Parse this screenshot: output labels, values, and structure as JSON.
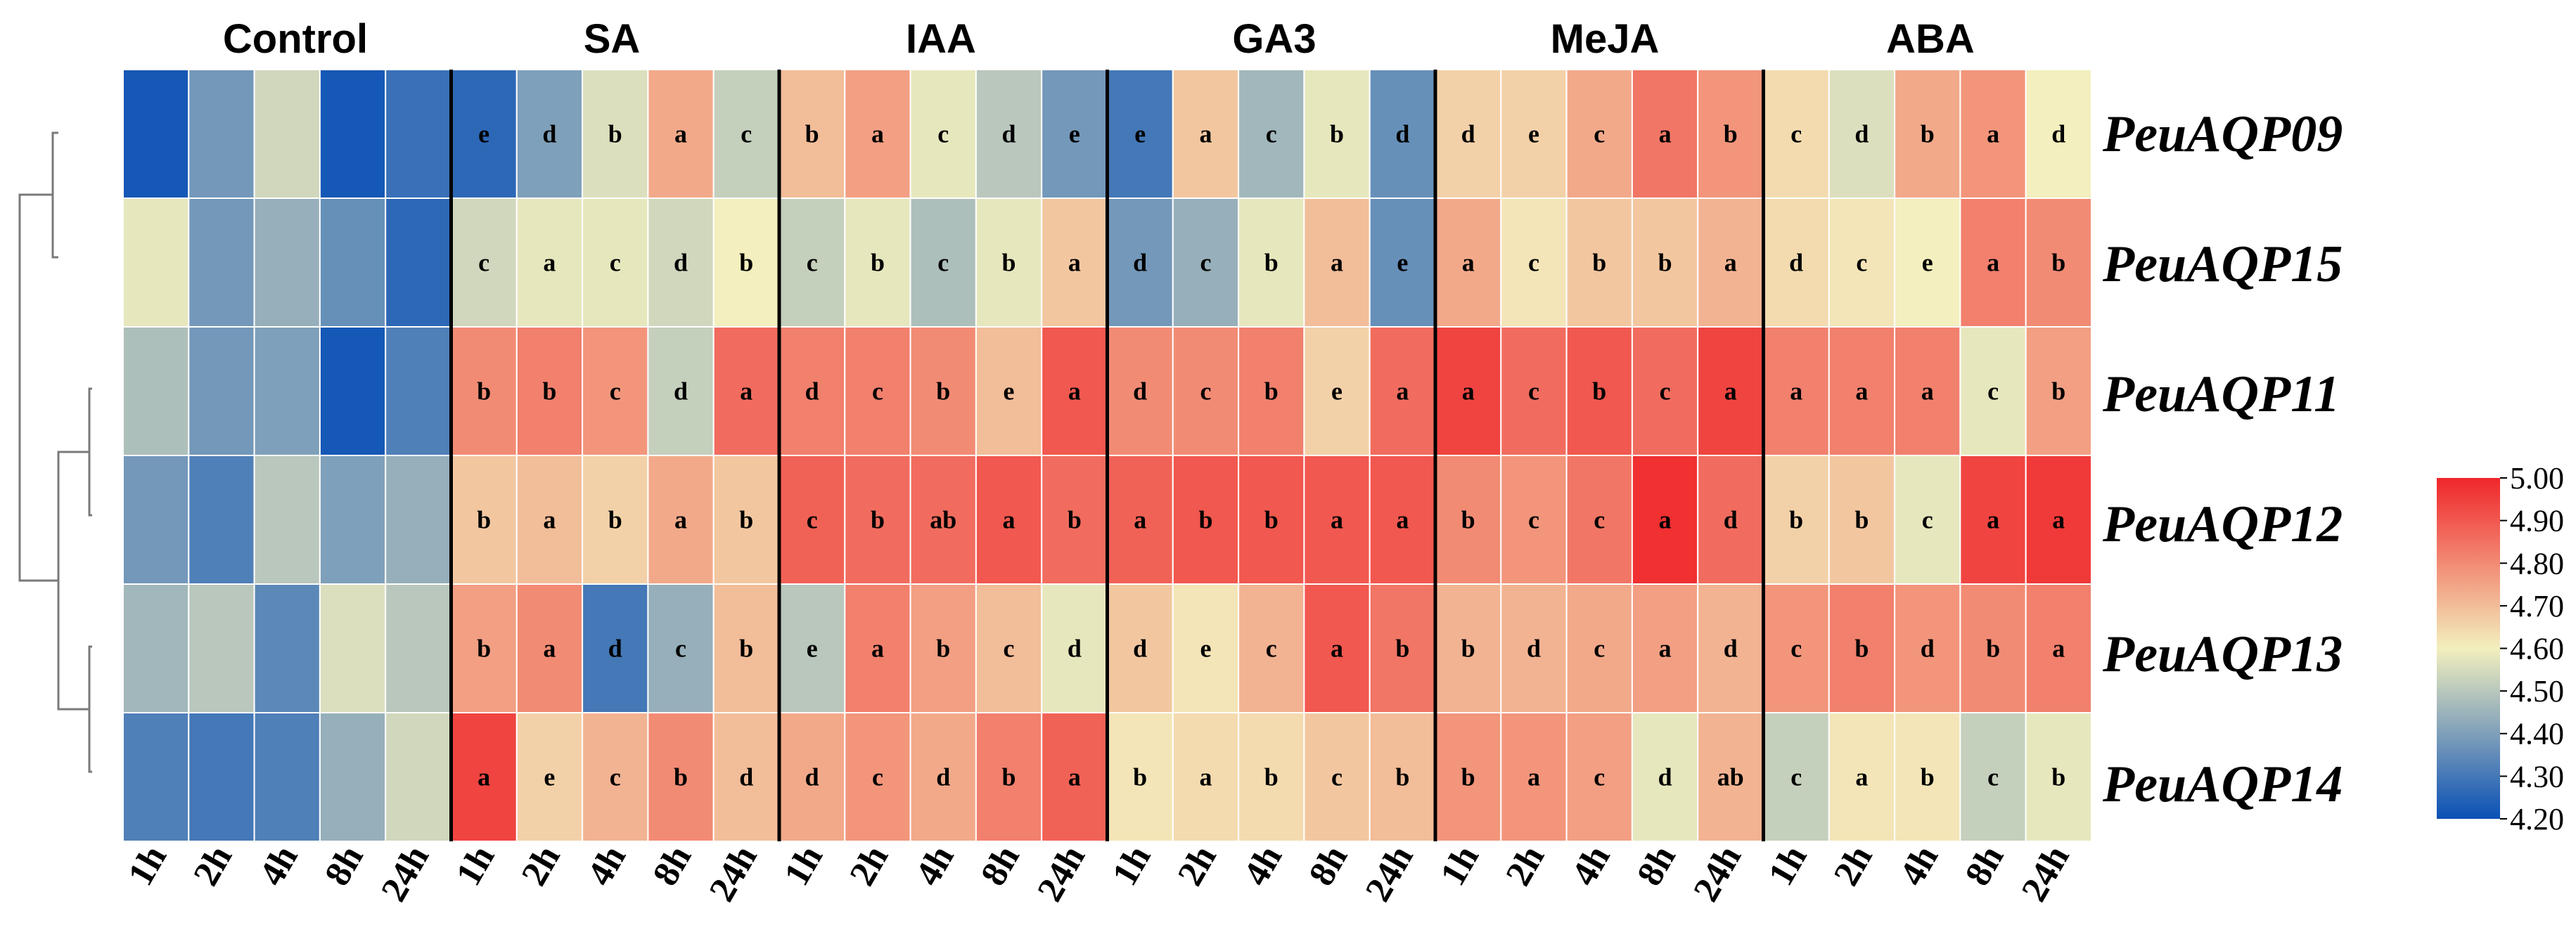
{
  "chart_data": {
    "type": "heatmap",
    "groups": [
      "Control",
      "SA",
      "IAA",
      "GA3",
      "MeJA",
      "ABA"
    ],
    "timepoints": [
      "1h",
      "2h",
      "4h",
      "8h",
      "24h"
    ],
    "genes": [
      "PeuAQP09",
      "PeuAQP15",
      "PeuAQP11",
      "PeuAQP12",
      "PeuAQP13",
      "PeuAQP14"
    ],
    "values": [
      [
        4.22,
        4.38,
        4.54,
        4.22,
        4.28,
        4.26,
        4.4,
        4.56,
        4.74,
        4.52,
        4.7,
        4.76,
        4.58,
        4.5,
        4.38,
        4.3,
        4.68,
        4.46,
        4.58,
        4.36,
        4.66,
        4.66,
        4.74,
        4.84,
        4.78,
        4.64,
        4.56,
        4.74,
        4.78,
        4.6
      ],
      [
        4.58,
        4.38,
        4.44,
        4.36,
        4.26,
        4.54,
        4.58,
        4.58,
        4.54,
        4.6,
        4.52,
        4.58,
        4.48,
        4.58,
        4.68,
        4.38,
        4.44,
        4.58,
        4.7,
        4.36,
        4.74,
        4.62,
        4.68,
        4.68,
        4.72,
        4.64,
        4.62,
        4.6,
        4.82,
        4.8
      ],
      [
        4.48,
        4.38,
        4.4,
        4.22,
        4.32,
        4.8,
        4.82,
        4.78,
        4.52,
        4.86,
        4.82,
        4.82,
        4.8,
        4.7,
        4.9,
        4.8,
        4.8,
        4.82,
        4.66,
        4.86,
        4.94,
        4.86,
        4.9,
        4.86,
        4.94,
        4.82,
        4.82,
        4.82,
        4.58,
        4.76
      ],
      [
        4.38,
        4.32,
        4.5,
        4.4,
        4.44,
        4.68,
        4.7,
        4.66,
        4.74,
        4.68,
        4.88,
        4.86,
        4.86,
        4.9,
        4.86,
        4.88,
        4.9,
        4.9,
        4.9,
        4.9,
        4.8,
        4.78,
        4.84,
        4.98,
        4.86,
        4.66,
        4.68,
        4.58,
        4.94,
        4.96
      ],
      [
        4.46,
        4.5,
        4.34,
        4.56,
        4.5,
        4.76,
        4.8,
        4.3,
        4.44,
        4.7,
        4.5,
        4.82,
        4.76,
        4.7,
        4.58,
        4.68,
        4.62,
        4.72,
        4.9,
        4.84,
        4.72,
        4.72,
        4.74,
        4.76,
        4.72,
        4.78,
        4.82,
        4.78,
        4.8,
        4.82
      ],
      [
        4.32,
        4.3,
        4.32,
        4.44,
        4.54,
        4.94,
        4.66,
        4.72,
        4.8,
        4.7,
        4.74,
        4.78,
        4.74,
        4.82,
        4.88,
        4.62,
        4.64,
        4.64,
        4.68,
        4.7,
        4.78,
        4.78,
        4.76,
        4.58,
        4.72,
        4.52,
        4.62,
        4.62,
        4.52,
        4.58
      ]
    ],
    "letters": [
      [
        "",
        "",
        "",
        "",
        "",
        "e",
        "d",
        "b",
        "a",
        "c",
        "b",
        "a",
        "c",
        "d",
        "e",
        "e",
        "a",
        "c",
        "b",
        "d",
        "d",
        "e",
        "c",
        "a",
        "b",
        "c",
        "d",
        "b",
        "a",
        "d"
      ],
      [
        "",
        "",
        "",
        "",
        "",
        "c",
        "a",
        "c",
        "d",
        "b",
        "c",
        "b",
        "c",
        "b",
        "a",
        "d",
        "c",
        "b",
        "a",
        "e",
        "a",
        "c",
        "b",
        "b",
        "a",
        "d",
        "c",
        "e",
        "a",
        "b"
      ],
      [
        "",
        "",
        "",
        "",
        "",
        "b",
        "b",
        "c",
        "d",
        "a",
        "d",
        "c",
        "b",
        "e",
        "a",
        "d",
        "c",
        "b",
        "e",
        "a",
        "a",
        "c",
        "b",
        "c",
        "a",
        "a",
        "a",
        "a",
        "c",
        "b"
      ],
      [
        "",
        "",
        "",
        "",
        "",
        "b",
        "a",
        "b",
        "a",
        "b",
        "c",
        "b",
        "ab",
        "a",
        "b",
        "a",
        "b",
        "b",
        "a",
        "a",
        "b",
        "c",
        "c",
        "a",
        "d",
        "b",
        "b",
        "c",
        "a",
        "a"
      ],
      [
        "",
        "",
        "",
        "",
        "",
        "b",
        "a",
        "d",
        "c",
        "b",
        "e",
        "a",
        "b",
        "c",
        "d",
        "d",
        "e",
        "c",
        "a",
        "b",
        "b",
        "d",
        "c",
        "a",
        "d",
        "c",
        "b",
        "d",
        "b",
        "a"
      ],
      [
        "",
        "",
        "",
        "",
        "",
        "a",
        "e",
        "c",
        "b",
        "d",
        "d",
        "c",
        "d",
        "b",
        "a",
        "b",
        "a",
        "b",
        "c",
        "b",
        "b",
        "a",
        "c",
        "d",
        "ab",
        "c",
        "a",
        "b",
        "c",
        "b"
      ]
    ],
    "colorbar": {
      "min": 4.2,
      "max": 5.0,
      "ticks": [
        "5.00",
        "4.90",
        "4.80",
        "4.70",
        "4.60",
        "4.50",
        "4.40",
        "4.30",
        "4.20"
      ],
      "colors": [
        "#0a50b5",
        "#f3efbe",
        "#f0262a"
      ]
    },
    "dendrogram": "rows",
    "legend": "right"
  }
}
